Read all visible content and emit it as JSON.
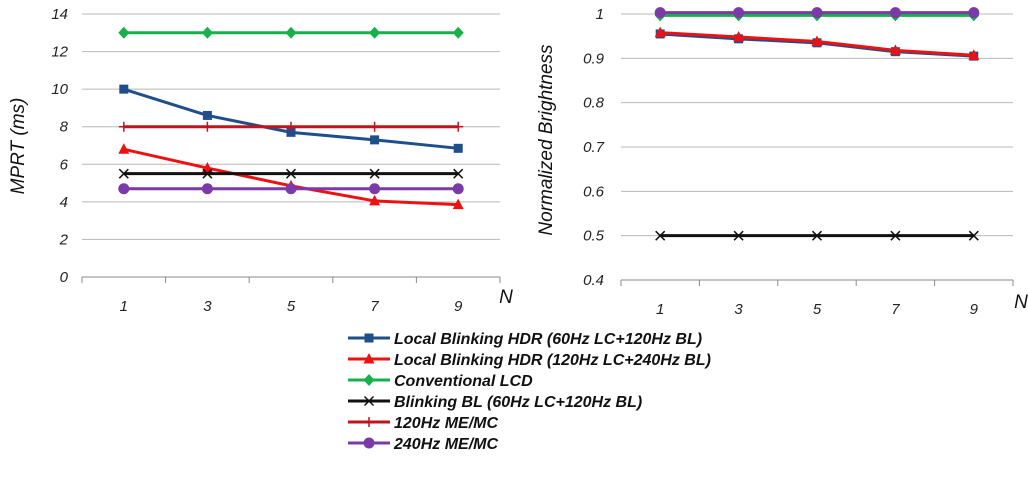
{
  "chart_data": [
    {
      "type": "line",
      "title": "",
      "xlabel": "N",
      "ylabel": "MPRT (ms)",
      "x": [
        1,
        3,
        5,
        7,
        9
      ],
      "xticks": [
        "1",
        "3",
        "5",
        "7",
        "9"
      ],
      "ylim": [
        0,
        14
      ],
      "yticks": [
        "0",
        "2",
        "4",
        "6",
        "8",
        "10",
        "12",
        "14"
      ],
      "grid": true,
      "series": [
        {
          "name": "Local Blinking HDR (60Hz LC+120Hz BL)",
          "color": "#1f4e8c",
          "marker": "square",
          "values": [
            10.0,
            8.6,
            7.7,
            7.3,
            6.85
          ]
        },
        {
          "name": "Local Blinking HDR (120Hz LC+240Hz BL)",
          "color": "#ee1111",
          "marker": "triangle",
          "values": [
            6.8,
            5.8,
            4.85,
            4.05,
            3.85
          ]
        },
        {
          "name": "Conventional LCD",
          "color": "#16b14a",
          "marker": "diamond",
          "values": [
            13,
            13,
            13,
            13,
            13
          ]
        },
        {
          "name": "Blinking BL (60Hz LC+120Hz BL)",
          "color": "#111111",
          "marker": "x",
          "values": [
            5.5,
            5.5,
            5.5,
            5.5,
            5.5
          ]
        },
        {
          "name": "120Hz ME/MC",
          "color": "#c0151c",
          "marker": "plus",
          "values": [
            8,
            8,
            8,
            8,
            8
          ]
        },
        {
          "name": "240Hz ME/MC",
          "color": "#7a3aa8",
          "marker": "circle",
          "values": [
            4.7,
            4.7,
            4.7,
            4.7,
            4.7
          ]
        }
      ]
    },
    {
      "type": "line",
      "title": "",
      "xlabel": "N",
      "ylabel": "Normalized Brightness",
      "x": [
        1,
        3,
        5,
        7,
        9
      ],
      "xticks": [
        "1",
        "3",
        "5",
        "7",
        "9"
      ],
      "ylim": [
        0.4,
        1
      ],
      "yticks": [
        "0.4",
        "0.5",
        "0.6",
        "0.7",
        "0.8",
        "0.9",
        "1"
      ],
      "grid": true,
      "series": [
        {
          "name": "Local Blinking HDR (60Hz LC+120Hz BL)",
          "color": "#1f4e8c",
          "marker": "square",
          "values": [
            0.955,
            0.944,
            0.935,
            0.915,
            0.905
          ]
        },
        {
          "name": "Local Blinking HDR (120Hz LC+240Hz BL)",
          "color": "#ee1111",
          "marker": "triangle",
          "values": [
            0.958,
            0.948,
            0.938,
            0.918,
            0.907
          ]
        },
        {
          "name": "Conventional LCD",
          "color": "#16b14a",
          "marker": "diamond",
          "values": [
            0.997,
            0.997,
            0.997,
            0.997,
            0.997
          ]
        },
        {
          "name": "Blinking BL (60Hz LC+120Hz BL)",
          "color": "#111111",
          "marker": "x",
          "values": [
            0.5,
            0.5,
            0.5,
            0.5,
            0.5
          ]
        },
        {
          "name": "240Hz ME/MC",
          "color": "#7a3aa8",
          "marker": "circle",
          "values": [
            1.003,
            1.003,
            1.003,
            1.003,
            1.003
          ]
        }
      ]
    }
  ],
  "legend": {
    "placement": "bottom-center",
    "items": [
      {
        "label": "Local Blinking HDR (60Hz LC+120Hz BL)",
        "color": "#1f4e8c",
        "marker": "square"
      },
      {
        "label": "Local Blinking HDR (120Hz LC+240Hz BL)",
        "color": "#ee1111",
        "marker": "triangle"
      },
      {
        "label": "Conventional LCD",
        "color": "#16b14a",
        "marker": "diamond"
      },
      {
        "label": "Blinking BL (60Hz LC+120Hz BL)",
        "color": "#111111",
        "marker": "x"
      },
      {
        "label": "120Hz ME/MC",
        "color": "#c0151c",
        "marker": "plus"
      },
      {
        "label": "240Hz ME/MC",
        "color": "#7a3aa8",
        "marker": "circle"
      }
    ]
  }
}
